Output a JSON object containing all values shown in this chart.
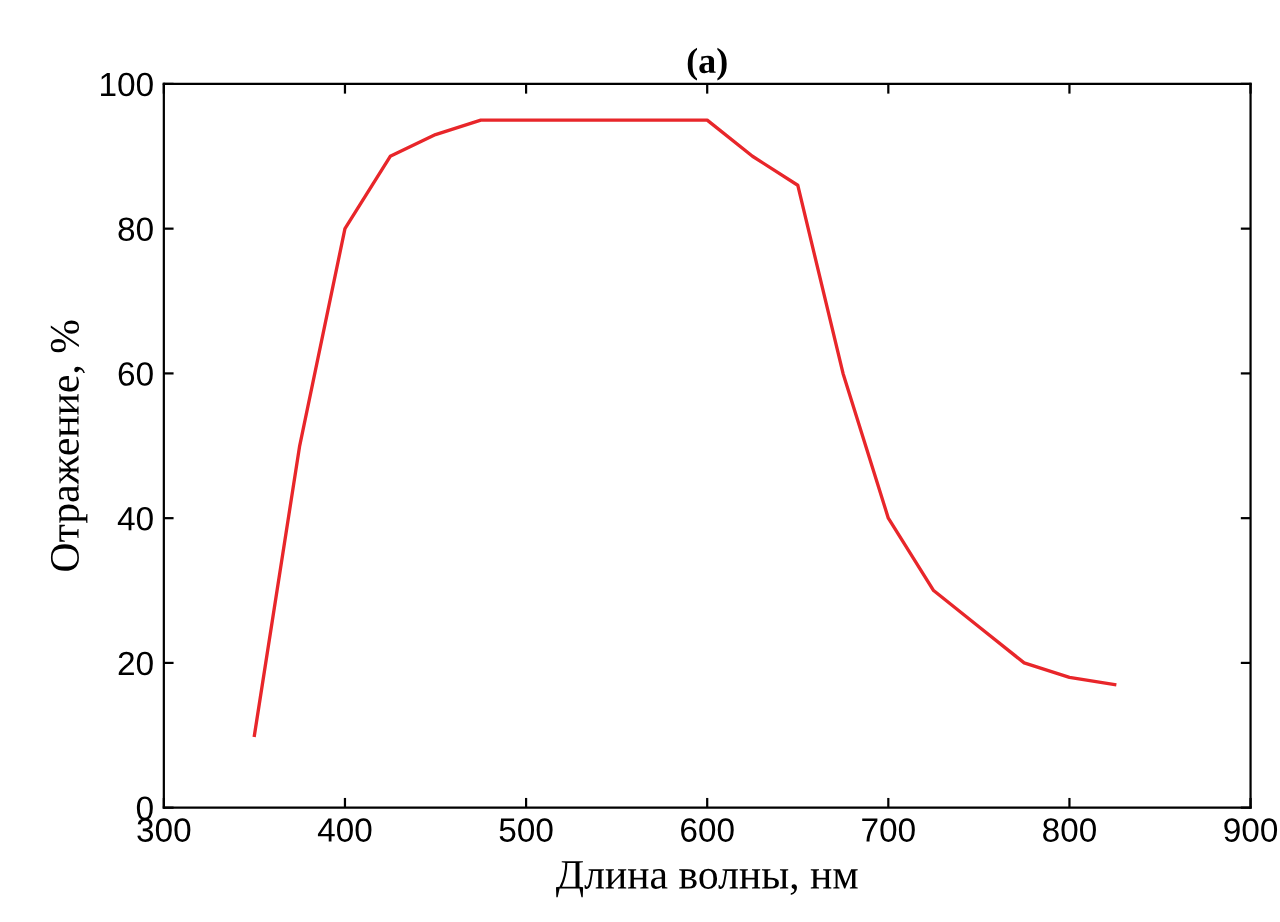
{
  "chart_data": {
    "type": "line",
    "title": "(a)",
    "xlabel": "Длина волны, нм",
    "ylabel": "Отражение, %",
    "x": [
      350,
      375,
      400,
      425,
      450,
      475,
      500,
      525,
      550,
      575,
      600,
      625,
      650,
      675,
      700,
      725,
      750,
      775,
      800,
      825
    ],
    "series": [
      {
        "color": "#e8262a",
        "values": [
          10,
          50,
          80,
          90,
          93,
          95,
          95,
          95,
          95,
          95,
          95,
          90,
          86,
          60,
          40,
          30,
          25,
          20,
          18,
          17
        ]
      }
    ],
    "xlim": [
      300,
      900
    ],
    "xticks": [
      300,
      400,
      500,
      600,
      700,
      800,
      900
    ],
    "ylim": [
      0,
      100
    ],
    "yticks": [
      0,
      20,
      40,
      60,
      80,
      100
    ],
    "grid": false,
    "legend": false,
    "marker": "none",
    "line_style": "solid"
  }
}
